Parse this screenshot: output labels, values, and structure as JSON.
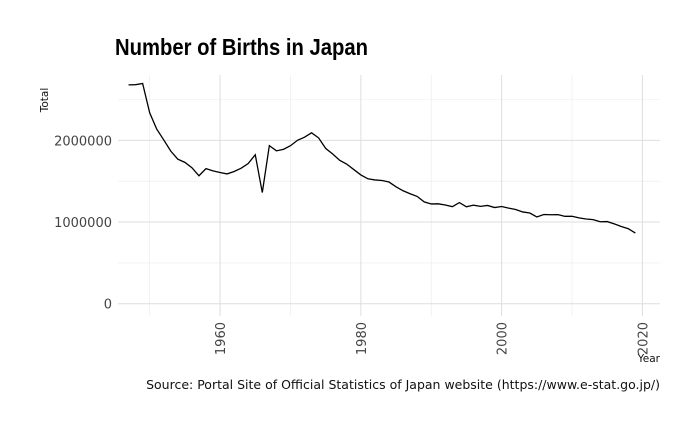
{
  "chart_data": {
    "type": "line",
    "title": "Number of Births in Japan",
    "caption": "Source: Portal Site of Official Statistics of Japan website (https://www.e-stat.go.jp/)",
    "xlabel": "Year",
    "ylabel": "Total",
    "xlim": [
      1945.5,
      2022.5
    ],
    "ylim": [
      -150000,
      2800000
    ],
    "xticks": [
      1960,
      1980,
      2000,
      2020
    ],
    "yticks": [
      0,
      1000000,
      2000000
    ],
    "ytick_labels": [
      "0",
      "1000000",
      "2000000"
    ],
    "xtick_labels": [
      "1960",
      "1980",
      "2000",
      "2020"
    ],
    "grid": true,
    "line_color": "#000000",
    "x": [
      1947,
      1948,
      1949,
      1950,
      1951,
      1952,
      1953,
      1954,
      1955,
      1956,
      1957,
      1958,
      1959,
      1960,
      1961,
      1962,
      1963,
      1964,
      1965,
      1966,
      1967,
      1968,
      1969,
      1970,
      1971,
      1972,
      1973,
      1974,
      1975,
      1976,
      1977,
      1978,
      1979,
      1980,
      1981,
      1982,
      1983,
      1984,
      1985,
      1986,
      1987,
      1988,
      1989,
      1990,
      1991,
      1992,
      1993,
      1994,
      1995,
      1996,
      1997,
      1998,
      1999,
      2000,
      2001,
      2002,
      2003,
      2004,
      2005,
      2006,
      2007,
      2008,
      2009,
      2010,
      2011,
      2012,
      2013,
      2014,
      2015,
      2016,
      2017,
      2018,
      2019
    ],
    "values": [
      2678792,
      2681624,
      2696638,
      2337507,
      2137689,
      2005162,
      1868040,
      1769580,
      1730692,
      1665278,
      1566713,
      1653469,
      1626088,
      1606041,
      1589372,
      1618616,
      1659521,
      1716761,
      1823697,
      1360974,
      1935647,
      1871839,
      1889815,
      1934239,
      2000973,
      2038682,
      2091983,
      2029989,
      1901440,
      1832617,
      1755100,
      1708643,
      1642580,
      1576889,
      1529455,
      1515392,
      1508687,
      1489780,
      1431577,
      1382946,
      1346658,
      1314006,
      1246802,
      1221585,
      1223245,
      1208989,
      1188282,
      1238328,
      1187064,
      1206555,
      1191665,
      1203147,
      1177669,
      1190547,
      1170662,
      1153855,
      1123610,
      1110721,
      1062530,
      1092674,
      1089818,
      1091156,
      1070035,
      1071304,
      1050806,
      1037231,
      1029816,
      1003539,
      1005677,
      977242,
      946146,
      918400,
      865239
    ]
  }
}
